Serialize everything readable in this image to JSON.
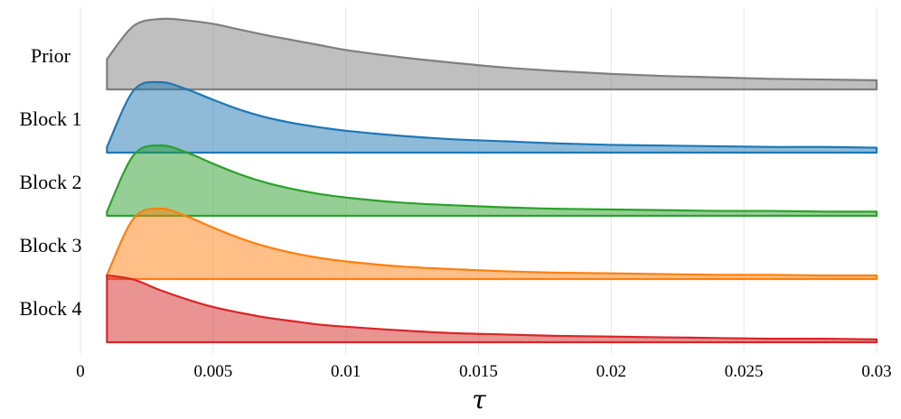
{
  "chart_data": {
    "type": "area",
    "xlabel": "τ",
    "ylabel": "",
    "xlim": [
      0,
      0.03
    ],
    "x_ticks": [
      {
        "value": 0,
        "label": "0"
      },
      {
        "value": 0.005,
        "label": "0.005"
      },
      {
        "value": 0.01,
        "label": "0.01"
      },
      {
        "value": 0.015,
        "label": "0.015"
      },
      {
        "value": 0.02,
        "label": "0.02"
      },
      {
        "value": 0.025,
        "label": "0.025"
      },
      {
        "value": 0.03,
        "label": "0.03"
      }
    ],
    "grid": true,
    "x": [
      0.001,
      0.002,
      0.003,
      0.004,
      0.005,
      0.006,
      0.007,
      0.008,
      0.009,
      0.01,
      0.012,
      0.014,
      0.016,
      0.018,
      0.02,
      0.022,
      0.024,
      0.026,
      0.028,
      0.03
    ],
    "series": [
      {
        "name": "Prior",
        "color": "#7f7f7f",
        "values": [
          0.43,
          0.9,
          1.0,
          0.98,
          0.93,
          0.85,
          0.77,
          0.7,
          0.63,
          0.56,
          0.46,
          0.38,
          0.31,
          0.26,
          0.22,
          0.19,
          0.17,
          0.15,
          0.14,
          0.13
        ]
      },
      {
        "name": "Block 1",
        "color": "#1f77b4",
        "values": [
          0.08,
          0.88,
          1.0,
          0.9,
          0.75,
          0.61,
          0.5,
          0.42,
          0.36,
          0.31,
          0.24,
          0.19,
          0.16,
          0.13,
          0.11,
          0.1,
          0.09,
          0.08,
          0.08,
          0.07
        ]
      },
      {
        "name": "Block 2",
        "color": "#2ca02c",
        "values": [
          0.06,
          0.86,
          1.0,
          0.9,
          0.74,
          0.59,
          0.47,
          0.38,
          0.31,
          0.26,
          0.19,
          0.15,
          0.12,
          0.1,
          0.09,
          0.08,
          0.07,
          0.07,
          0.06,
          0.06
        ]
      },
      {
        "name": "Block 3",
        "color": "#ff7f0e",
        "values": [
          0.06,
          0.86,
          1.0,
          0.89,
          0.73,
          0.58,
          0.46,
          0.37,
          0.3,
          0.25,
          0.18,
          0.14,
          0.11,
          0.09,
          0.08,
          0.07,
          0.06,
          0.06,
          0.05,
          0.05
        ]
      },
      {
        "name": "Block 4",
        "color": "#d62728",
        "values": [
          0.95,
          0.89,
          0.74,
          0.61,
          0.5,
          0.42,
          0.35,
          0.3,
          0.25,
          0.22,
          0.17,
          0.13,
          0.11,
          0.09,
          0.08,
          0.07,
          0.06,
          0.05,
          0.05,
          0.04
        ]
      }
    ]
  }
}
